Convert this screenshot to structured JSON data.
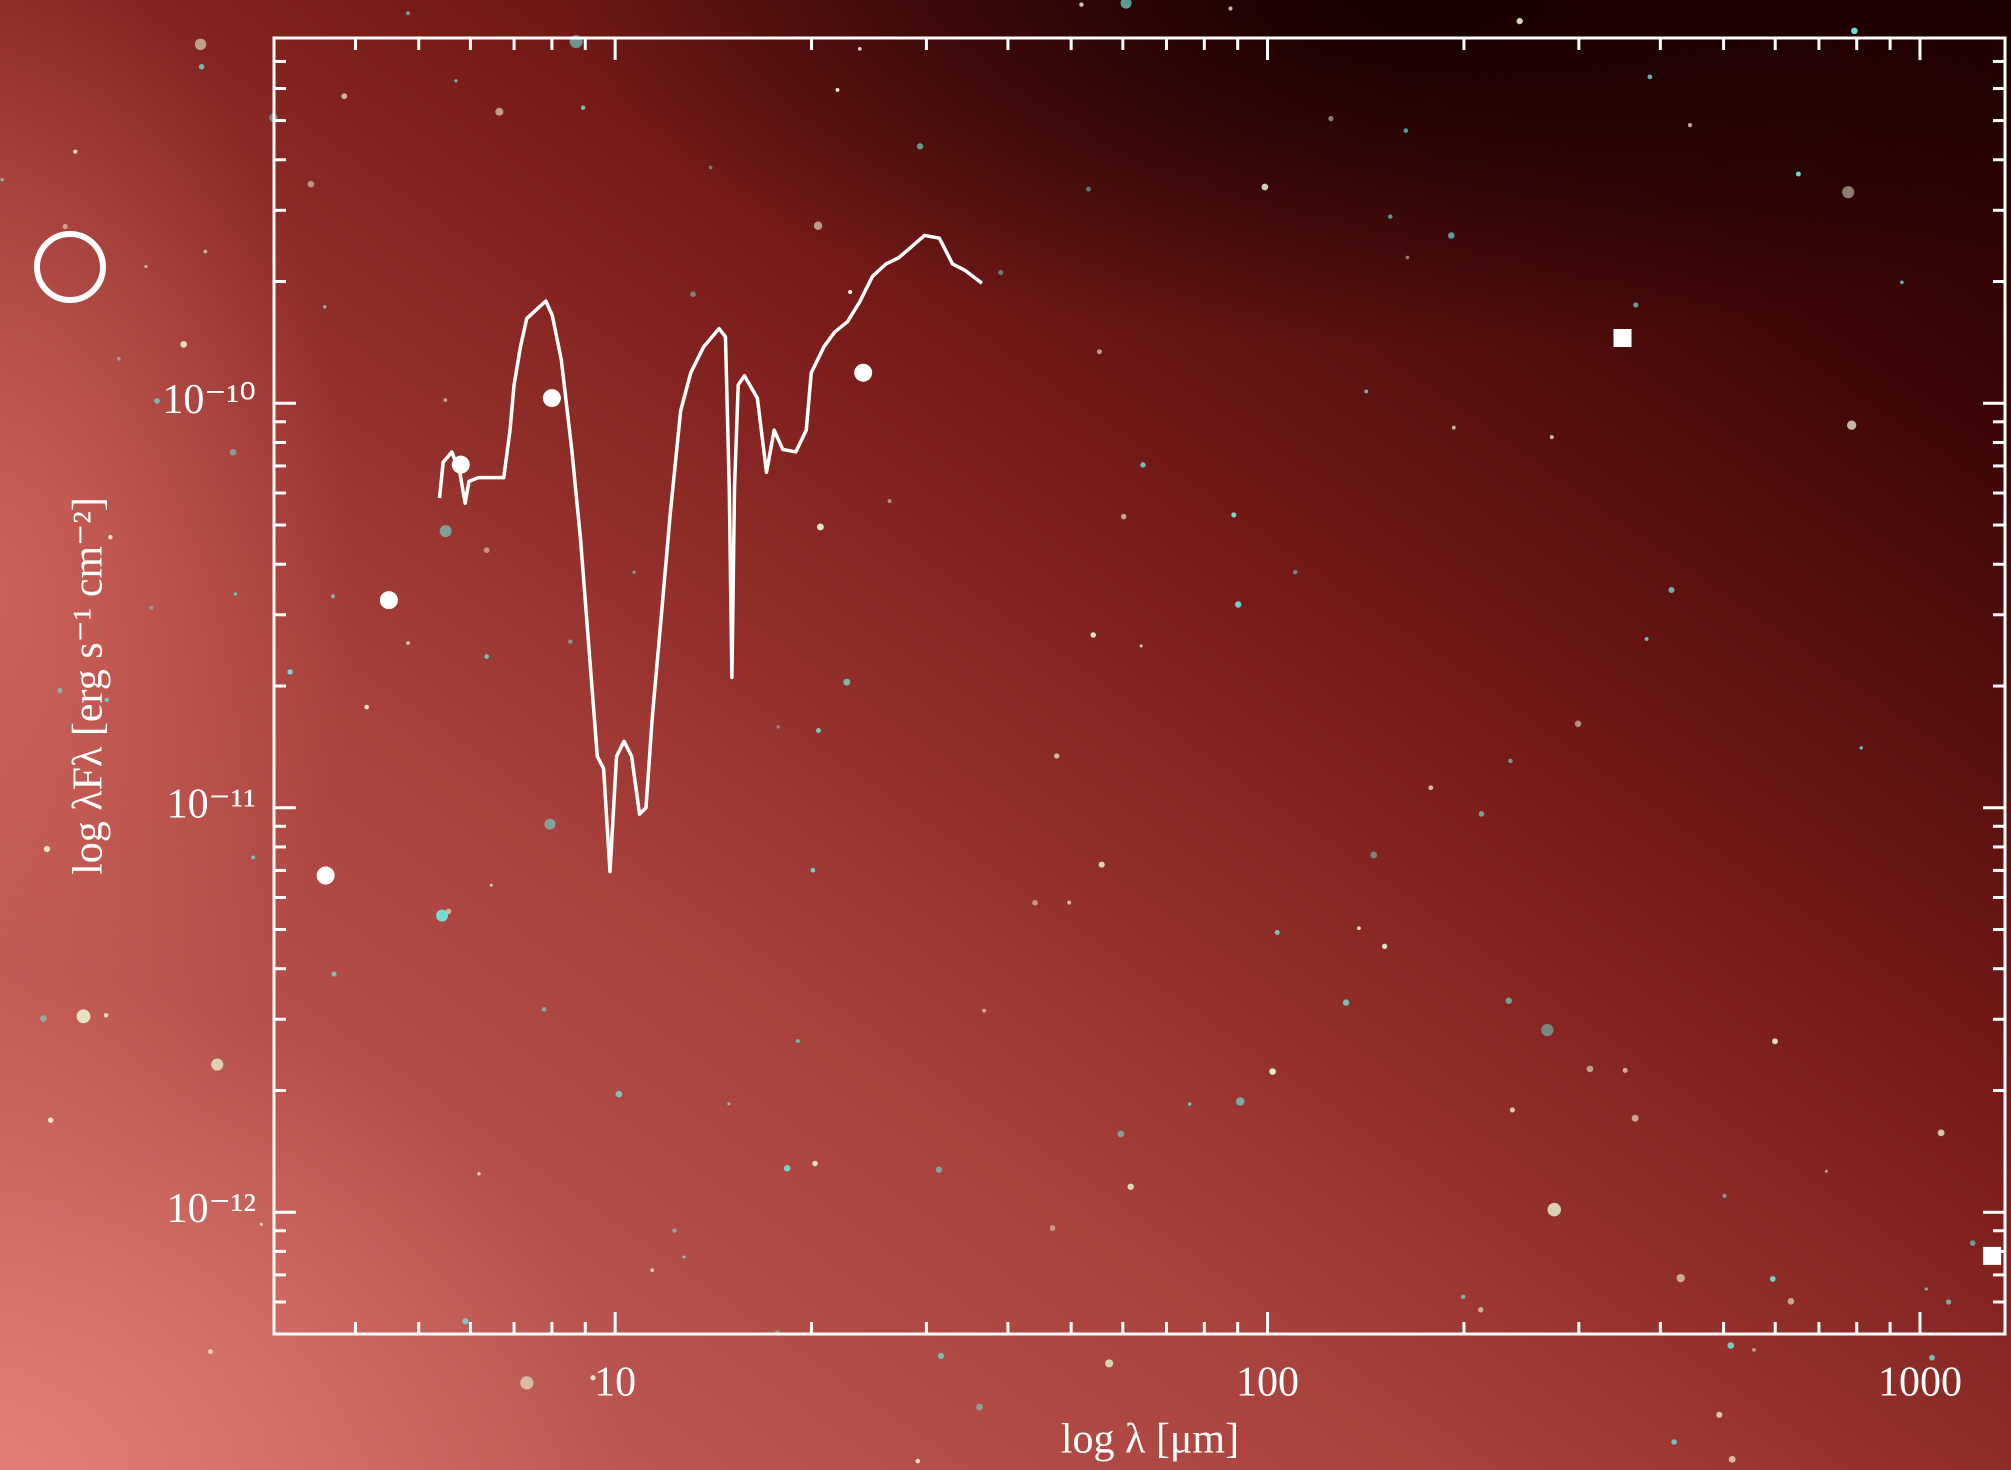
{
  "chart_data": {
    "type": "scatter",
    "xlabel": "log λ [μm]",
    "ylabel": "log λFλ [erg s⁻¹ cm⁻²]",
    "xscale": "log",
    "yscale": "log",
    "xlim": [
      3,
      1350
    ],
    "ylim": [
      5e-13,
      8e-10
    ],
    "xticks": [
      10,
      100,
      1000
    ],
    "xminorticks": [
      4,
      5,
      6,
      7,
      8,
      9,
      20,
      30,
      40,
      50,
      60,
      70,
      80,
      90,
      200,
      300,
      400,
      500,
      600,
      700,
      800,
      900
    ],
    "yticks": [
      {
        "value": 1e-12,
        "label": "10⁻¹²"
      },
      {
        "value": 1e-11,
        "label": "10⁻¹¹"
      },
      {
        "value": 1e-10,
        "label": "10⁻¹⁰"
      }
    ],
    "yminorticks": [
      6e-13,
      7e-13,
      8e-13,
      9e-13,
      2e-12,
      3e-12,
      4e-12,
      5e-12,
      6e-12,
      7e-12,
      8e-12,
      9e-12,
      2e-11,
      3e-11,
      4e-11,
      5e-11,
      6e-11,
      7e-11,
      8e-11,
      9e-11,
      2e-10,
      3e-10,
      4e-10,
      5e-10,
      6e-10,
      7e-10
    ],
    "series": [
      {
        "marker": "line",
        "color": "#ffffff",
        "x": [
          5.38,
          5.45,
          5.62,
          5.78,
          5.89,
          5.97,
          6.17,
          6.39,
          6.75,
          6.9,
          7.0,
          7.16,
          7.32,
          7.59,
          7.83,
          8.01,
          8.27,
          8.58,
          8.85,
          9.1,
          9.39,
          9.6,
          9.82,
          10.05,
          10.32,
          10.6,
          10.9,
          11.15,
          11.4,
          11.77,
          12.15,
          12.6,
          13.06,
          13.67,
          14.43,
          14.76,
          14.96,
          15.1,
          15.24,
          15.44,
          15.78,
          16.52,
          17.06,
          17.53,
          18.07,
          18.92,
          19.63,
          19.98,
          20.9,
          21.7,
          22.7,
          23.7,
          24.8,
          26.0,
          27.2,
          28.4,
          29.8,
          31.4,
          32.9,
          34.4,
          36.5
        ],
        "values": [
          5.83e-11,
          7.15e-11,
          7.58e-11,
          6.75e-11,
          5.66e-11,
          6.41e-11,
          6.55e-11,
          6.55e-11,
          6.55e-11,
          8.58e-11,
          1.11e-10,
          1.38e-10,
          1.62e-10,
          1.71e-10,
          1.79e-10,
          1.65e-10,
          1.28e-10,
          7.69e-11,
          4.62e-11,
          2.58e-11,
          1.34e-11,
          1.25e-11,
          6.95e-12,
          1.34e-11,
          1.46e-11,
          1.34e-11,
          9.64e-12,
          1e-11,
          1.67e-11,
          2.98e-11,
          5.35e-11,
          9.57e-11,
          1.19e-10,
          1.38e-10,
          1.53e-10,
          1.46e-10,
          6.18e-11,
          2.1e-11,
          6.18e-11,
          1.11e-10,
          1.17e-10,
          1.03e-10,
          6.75e-11,
          8.58e-11,
          7.69e-11,
          7.58e-11,
          8.58e-11,
          1.19e-10,
          1.38e-10,
          1.5e-10,
          1.59e-10,
          1.78e-10,
          2.06e-10,
          2.21e-10,
          2.29e-10,
          2.43e-10,
          2.6e-10,
          2.56e-10,
          2.21e-10,
          2.13e-10,
          1.98e-10
        ]
      },
      {
        "marker": "circle",
        "color": "#ffffff",
        "x": [
          3.6,
          4.5,
          5.8,
          8.0,
          24
        ],
        "values": [
          6.8e-12,
          3.26e-11,
          7.05e-11,
          1.03e-10,
          1.19e-10
        ]
      },
      {
        "marker": "square",
        "color": "#ffffff",
        "x": [
          350,
          1290
        ],
        "values": [
          1.45e-10,
          7.8e-13
        ]
      }
    ]
  }
}
